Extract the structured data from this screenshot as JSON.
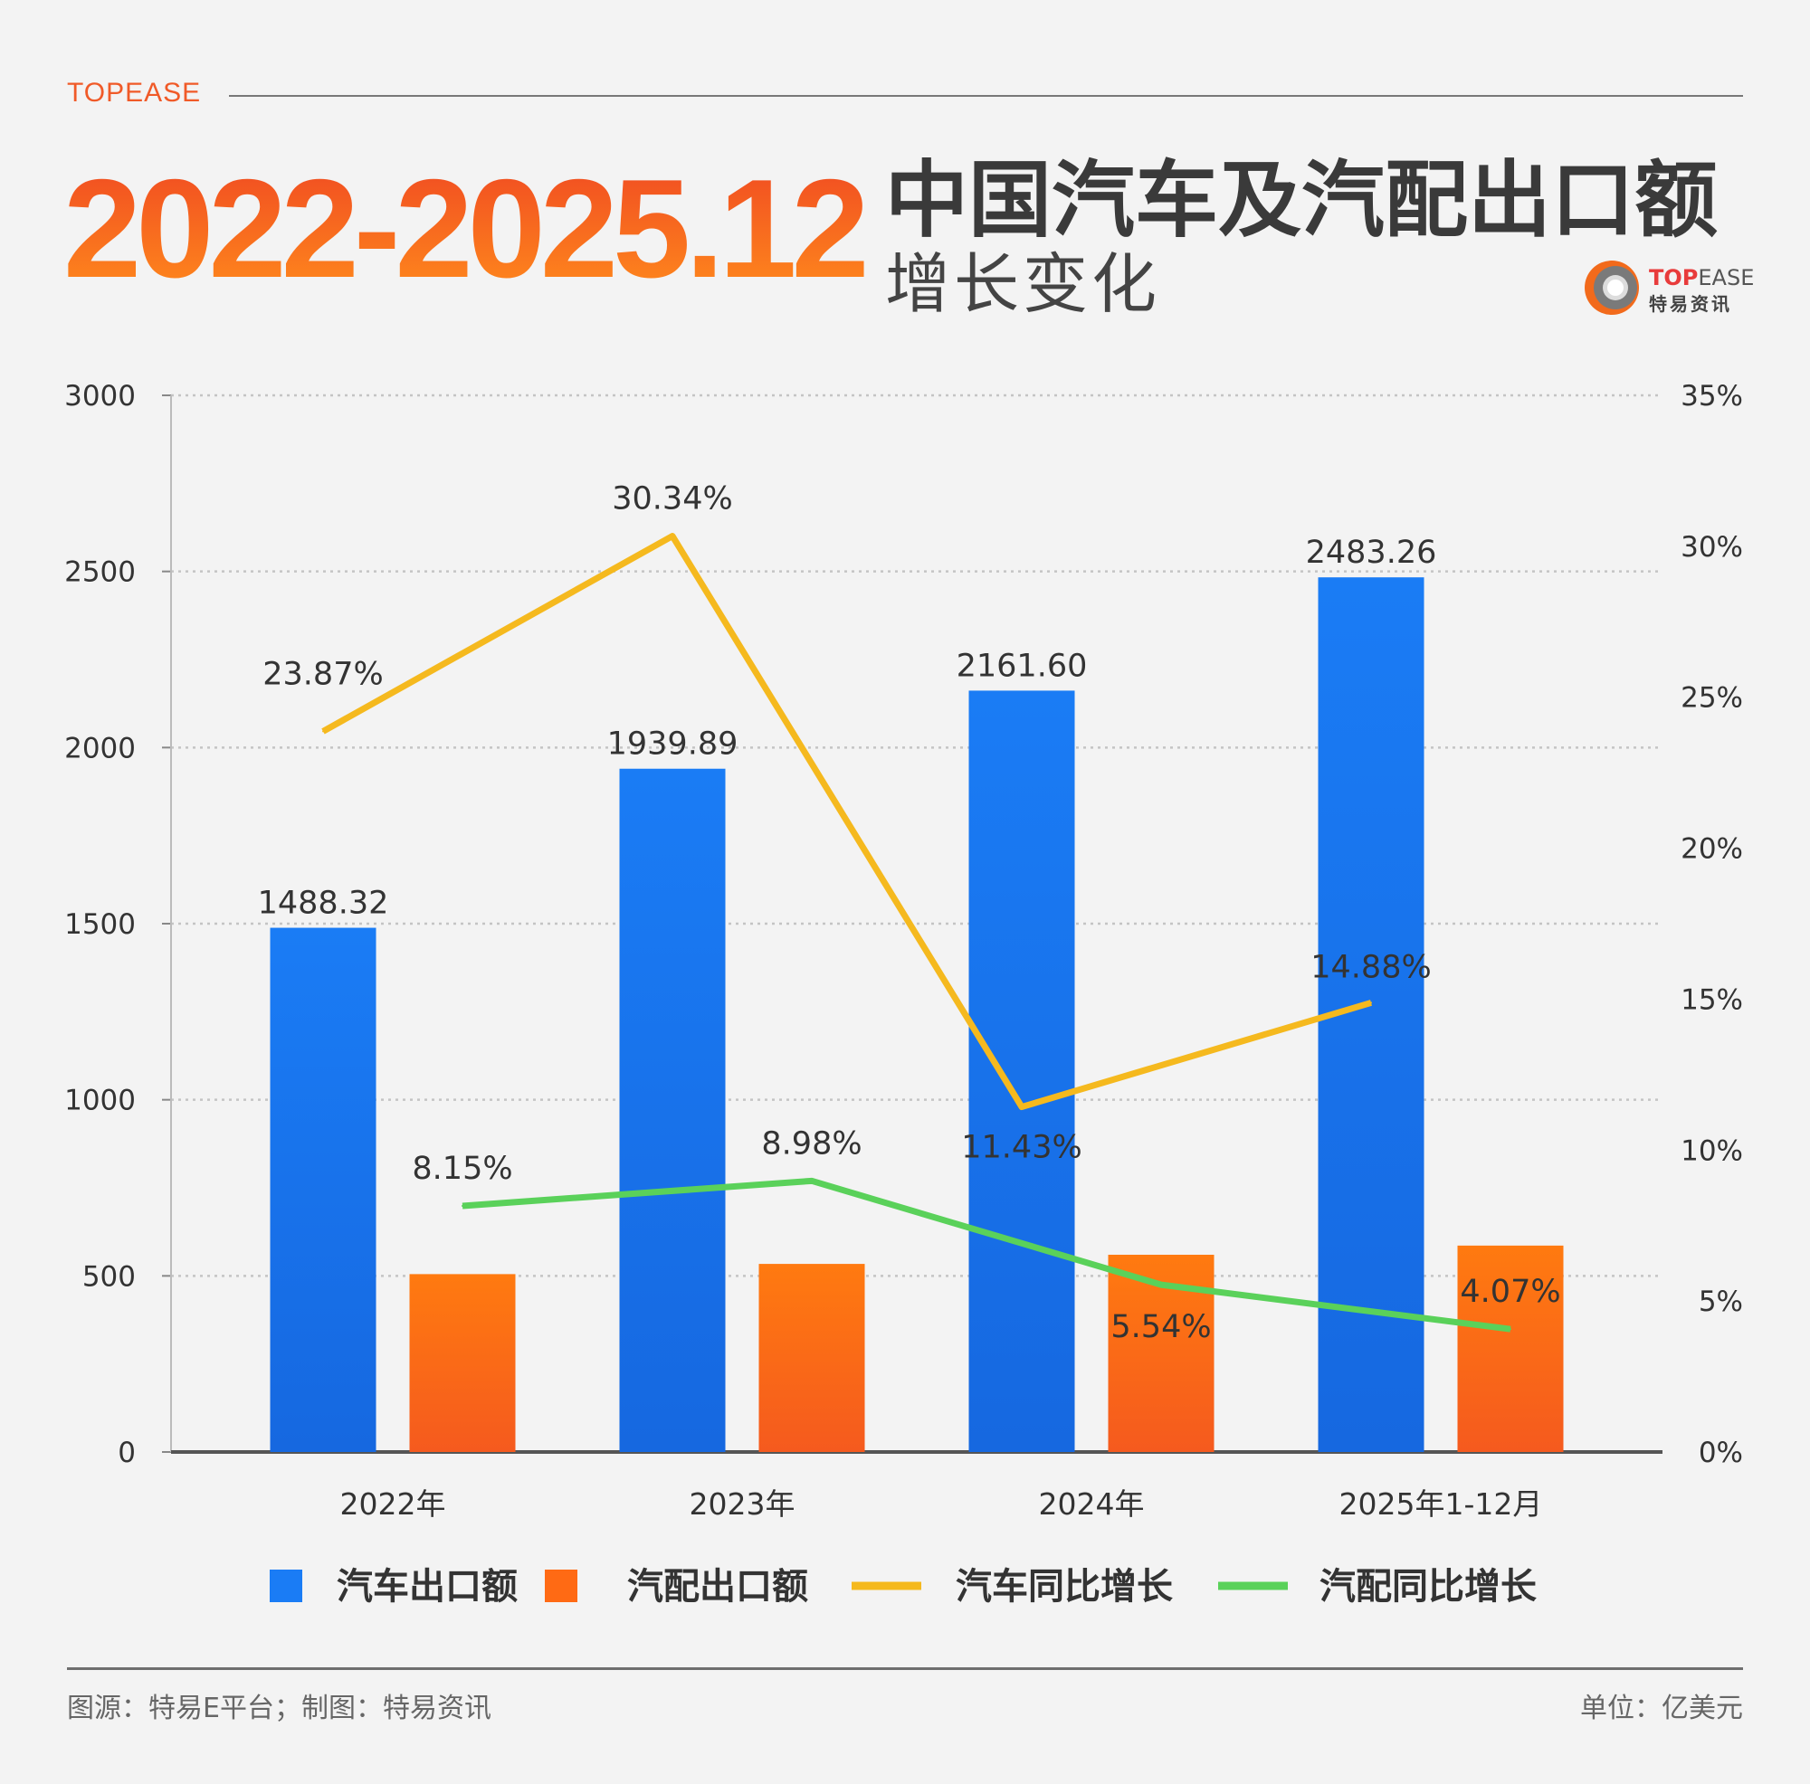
{
  "header": {
    "brand": "TOPEASE",
    "period": "2022-2025.12",
    "title": "中国汽车及汽配出口额",
    "subtitle": "增长变化",
    "logo_text": "TOPEASE",
    "logo_cn": "特易资讯"
  },
  "colors": {
    "car_bar": "#1a7cf5",
    "parts_bar": "#ff6a14",
    "car_growth": "#f5b91e",
    "parts_growth": "#5ad15a",
    "accent": "#f05a28"
  },
  "chart_data": {
    "type": "bar+line",
    "categories": [
      "2022年",
      "2023年",
      "2024年",
      "2025年1-12月"
    ],
    "left_axis": {
      "ylim": [
        0,
        3000
      ],
      "ticks": [
        "0",
        "500",
        "1000",
        "1500",
        "2000",
        "2500",
        "3000"
      ]
    },
    "right_axis": {
      "ylim": [
        0,
        35
      ],
      "ticks": [
        "0%",
        "5%",
        "10%",
        "15%",
        "20%",
        "25%",
        "30%",
        "35%"
      ]
    },
    "grid": true,
    "legend_position": "bottom",
    "series": [
      {
        "name": "汽车出口额",
        "type": "bar",
        "axis": "left",
        "values": [
          1488.32,
          1939.89,
          2161.6,
          2483.26
        ],
        "labels": [
          "1488.32",
          "1939.89",
          "2161.60",
          "2483.26"
        ]
      },
      {
        "name": "汽配出口额",
        "type": "bar",
        "axis": "left",
        "values": [
          505,
          534,
          560,
          586
        ]
      },
      {
        "name": "汽车同比增长",
        "type": "line",
        "axis": "right",
        "values": [
          23.87,
          30.34,
          11.43,
          14.88
        ],
        "labels": [
          "23.87%",
          "30.34%",
          "11.43%",
          "14.88%"
        ]
      },
      {
        "name": "汽配同比增长",
        "type": "line",
        "axis": "right",
        "values": [
          8.15,
          8.98,
          5.54,
          4.07
        ],
        "labels": [
          "8.15%",
          "8.98%",
          "5.54%",
          "4.07%"
        ]
      }
    ]
  },
  "footer": {
    "source": "图源：特易E平台；制图：特易资讯",
    "unit": "单位：亿美元"
  }
}
